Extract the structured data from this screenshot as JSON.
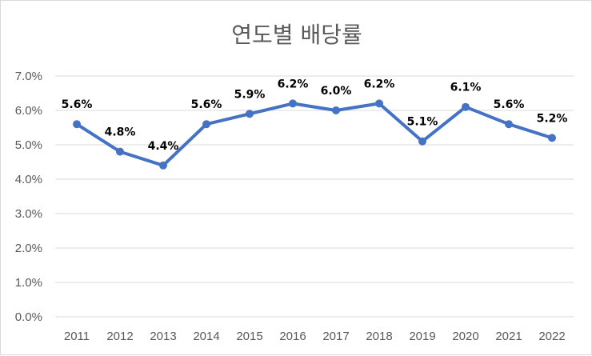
{
  "chart_data": {
    "type": "line",
    "title": "연도별 배당률",
    "categories": [
      "2011",
      "2012",
      "2013",
      "2014",
      "2015",
      "2016",
      "2017",
      "2018",
      "2019",
      "2020",
      "2021",
      "2022"
    ],
    "series": [
      {
        "values": [
          5.6,
          4.8,
          4.4,
          5.6,
          5.9,
          6.2,
          6.0,
          6.2,
          5.1,
          6.1,
          5.6,
          5.2
        ],
        "data_labels": [
          "5.6%",
          "4.8%",
          "4.4%",
          "5.6%",
          "5.9%",
          "6.2%",
          "6.0%",
          "6.2%",
          "5.1%",
          "6.1%",
          "5.6%",
          "5.2%"
        ],
        "color": "#4472c4"
      }
    ],
    "ylim": [
      0,
      7
    ],
    "y_ticks": [
      0,
      1,
      2,
      3,
      4,
      5,
      6,
      7
    ],
    "y_tick_labels": [
      "0.0%",
      "1.0%",
      "2.0%",
      "3.0%",
      "4.0%",
      "5.0%",
      "6.0%",
      "7.0%"
    ],
    "grid": true,
    "gridline_color": "#d9d9d9",
    "legend": false
  }
}
